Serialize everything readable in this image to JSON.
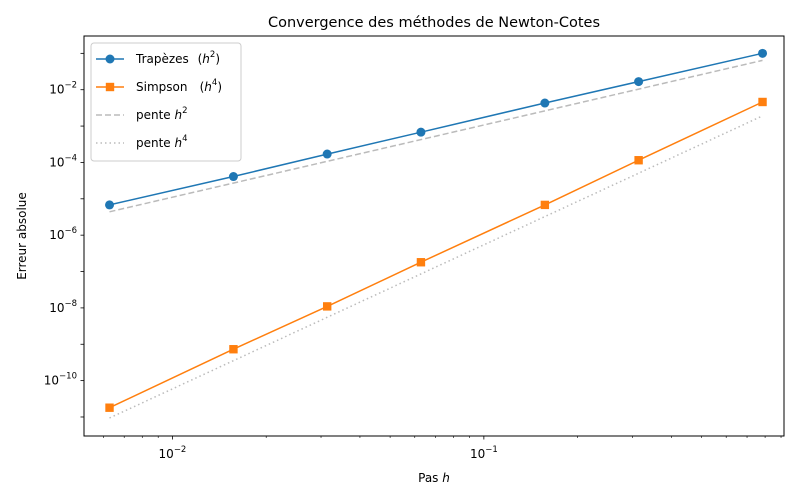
{
  "chart_data": {
    "type": "line",
    "title": "Convergence des méthodes de Newton-Cotes",
    "xlabel_text": "Pas ",
    "xlabel_var": "h",
    "ylabel": "Erreur absolue",
    "xscale": "log",
    "yscale": "log",
    "xlim": [
      0.0052,
      0.92
    ],
    "ylim": [
      3e-12,
      0.3
    ],
    "grid": false,
    "legend_position": "top-left",
    "x_ticks": [
      {
        "value": 0.01,
        "base": "10",
        "exp": "−2"
      },
      {
        "value": 0.1,
        "base": "10",
        "exp": "−1"
      }
    ],
    "y_ticks": [
      {
        "value": 0.01,
        "base": "10",
        "exp": "−2"
      },
      {
        "value": 0.0001,
        "base": "10",
        "exp": "−4"
      },
      {
        "value": 1e-06,
        "base": "10",
        "exp": "−6"
      },
      {
        "value": 1e-08,
        "base": "10",
        "exp": "−8"
      },
      {
        "value": 1e-10,
        "base": "10",
        "exp": "−10"
      }
    ],
    "x": [
      0.00628,
      0.0157,
      0.0314,
      0.0628,
      0.157,
      0.314,
      0.785
    ],
    "series": [
      {
        "name": "Trapèzes",
        "legend_label": "Trapèzes",
        "legend_order": "(h",
        "legend_exp": "2",
        "color": "#1f77b4",
        "marker": "circle",
        "linestyle": "solid",
        "values": [
          6.8e-06,
          4.1e-05,
          0.00017,
          0.00068,
          0.0043,
          0.0167,
          0.1
        ]
      },
      {
        "name": "Simpson",
        "legend_label": "Simpson",
        "legend_order": "(h",
        "legend_exp": "4",
        "color": "#ff7f0e",
        "marker": "square",
        "linestyle": "solid",
        "values": [
          1.8e-11,
          7.3e-10,
          1.1e-08,
          1.8e-07,
          6.8e-06,
          0.000115,
          0.0046
        ]
      },
      {
        "name": "pente h²",
        "legend_label": "pente ",
        "legend_var": "h",
        "legend_exp": "2",
        "color": "#bbbbbb",
        "marker": "none",
        "linestyle": "dashed",
        "x": [
          0.00628,
          0.785
        ],
        "values": [
          4.4e-06,
          0.064
        ]
      },
      {
        "name": "pente h⁴",
        "legend_label": "pente ",
        "legend_var": "h",
        "legend_exp": "4",
        "color": "#bbbbbb",
        "marker": "none",
        "linestyle": "dotted",
        "x": [
          0.00628,
          0.785
        ],
        "values": [
          9.4e-12,
          0.0019
        ]
      }
    ]
  }
}
